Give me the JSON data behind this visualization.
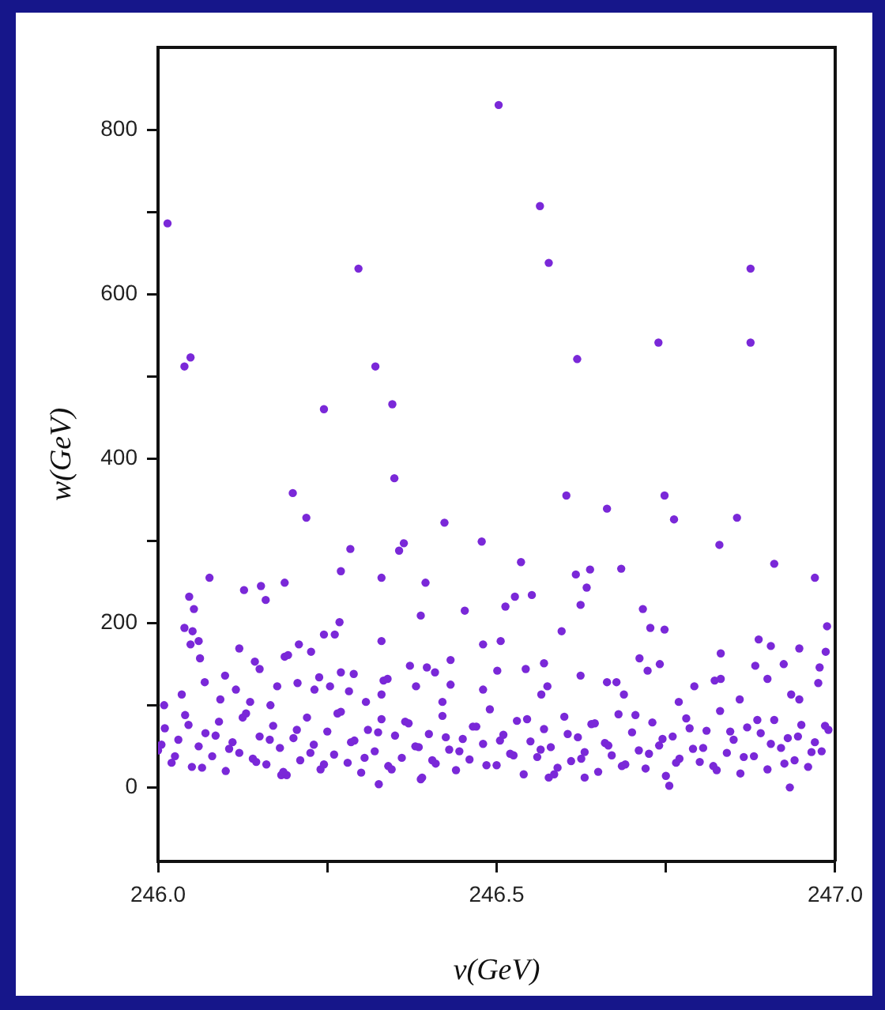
{
  "chart_data": {
    "type": "scatter",
    "xlabel": "v(GeV)",
    "ylabel": "w(GeV)",
    "xlim": [
      246,
      247
    ],
    "ylim": [
      -90,
      900
    ],
    "xticks": [
      {
        "value": 246,
        "label": "246.0"
      },
      {
        "value": 246.25,
        "label": null
      },
      246.5,
      {
        "value": 246.75,
        "label": null
      },
      {
        "value": 247,
        "label": "247.0"
      }
    ],
    "yticks": [
      0,
      {
        "value": 100,
        "label": null
      },
      200,
      {
        "value": 300,
        "label": null
      },
      400,
      {
        "value": 500,
        "label": null
      },
      600,
      {
        "value": 700,
        "label": null
      },
      800
    ],
    "marker": "circle",
    "series": [
      {
        "color": "#7a28d8",
        "x": [
          246.503,
          246.014,
          246.296,
          246.048,
          246.039,
          246.321,
          246.245,
          246.346,
          246.564,
          246.577,
          246.875,
          246.619,
          246.739,
          246.875,
          246.349,
          246.199,
          246.219,
          246.423,
          246.478,
          246.284,
          246.363,
          246.356,
          246.27,
          246.076,
          246.33,
          246.187,
          246.152,
          246.127,
          246.395,
          246.046,
          246.159,
          246.053,
          246.388,
          246.453,
          246.039,
          246.051,
          246.268,
          246.245,
          246.261,
          246.048,
          246.06,
          246.33,
          246.208,
          246.12,
          246.062,
          246.187,
          246.192,
          246.226,
          246.143,
          246.432,
          246.48,
          246.069,
          246.099,
          246.15,
          246.176,
          246.206,
          246.238,
          246.27,
          246.289,
          246.333,
          246.339,
          246.372,
          246.397,
          246.409,
          246.035,
          246.092,
          246.115,
          246.136,
          246.231,
          246.254,
          246.282,
          246.33,
          246.381,
          246.432,
          246.48,
          246.009,
          246.166,
          246.307,
          246.42,
          246.326,
          246.388,
          246.182,
          246.603,
          246.748,
          246.663,
          246.762,
          246.855,
          246.829,
          246.91,
          246.97,
          246.536,
          246.617,
          246.638,
          246.684,
          246.633,
          246.552,
          246.527,
          246.513,
          246.624,
          246.716,
          246.596,
          246.727,
          246.748,
          246.988,
          246.887,
          246.905,
          246.947,
          246.986,
          246.506,
          246.831,
          246.711,
          246.57,
          246.501,
          246.543,
          246.723,
          246.741,
          246.624,
          246.822,
          246.831,
          246.882,
          246.9,
          246.924,
          246.792,
          246.975,
          246.575,
          246.677,
          246.663,
          246.947,
          246.977,
          246.566,
          246.688,
          246.769,
          246.859,
          246.935,
          246.755,
          246.933,
          246.63,
          246.577,
          246.0,
          246.01,
          246.02,
          246.03,
          246.04,
          246.05,
          246.06,
          246.07,
          246.08,
          246.09,
          246.1,
          246.11,
          246.12,
          246.13,
          246.14,
          246.15,
          246.16,
          246.17,
          246.18,
          246.19,
          246.2,
          246.21,
          246.22,
          246.23,
          246.24,
          246.25,
          246.26,
          246.27,
          246.28,
          246.29,
          246.3,
          246.31,
          246.32,
          246.33,
          246.34,
          246.35,
          246.36,
          246.37,
          246.38,
          246.39,
          246.4,
          246.41,
          246.42,
          246.43,
          246.44,
          246.45,
          246.46,
          246.47,
          246.48,
          246.49,
          246.5,
          246.51,
          246.52,
          246.53,
          246.54,
          246.55,
          246.56,
          246.57,
          246.58,
          246.59,
          246.6,
          246.61,
          246.62,
          246.63,
          246.64,
          246.65,
          246.66,
          246.67,
          246.68,
          246.69,
          246.7,
          246.71,
          246.72,
          246.73,
          246.74,
          246.75,
          246.76,
          246.77,
          246.78,
          246.79,
          246.8,
          246.81,
          246.82,
          246.83,
          246.84,
          246.85,
          246.86,
          246.87,
          246.88,
          246.89,
          246.9,
          246.91,
          246.92,
          246.93,
          246.94,
          246.95,
          246.96,
          246.97,
          246.98,
          246.99,
          246.005,
          246.025,
          246.045,
          246.065,
          246.085,
          246.105,
          246.125,
          246.145,
          246.165,
          246.185,
          246.205,
          246.225,
          246.245,
          246.265,
          246.285,
          246.305,
          246.325,
          246.345,
          246.365,
          246.385,
          246.405,
          246.425,
          246.445,
          246.465,
          246.485,
          246.505,
          246.525,
          246.545,
          246.565,
          246.585,
          246.605,
          246.625,
          246.645,
          246.665,
          246.685,
          246.705,
          246.725,
          246.745,
          246.765,
          246.785,
          246.805,
          246.825,
          246.845,
          246.865,
          246.885,
          246.905,
          246.925,
          246.945,
          246.965,
          246.985
        ],
        "values": [
          830,
          686,
          631,
          523,
          512,
          512,
          460,
          466,
          707,
          638,
          631,
          521,
          541,
          541,
          376,
          358,
          328,
          322,
          299,
          290,
          297,
          288,
          263,
          255,
          255,
          249,
          245,
          240,
          249,
          232,
          228,
          217,
          209,
          215,
          194,
          190,
          201,
          186,
          186,
          174,
          178,
          178,
          174,
          169,
          157,
          159,
          161,
          165,
          153,
          155,
          174,
          128,
          136,
          144,
          123,
          127,
          134,
          140,
          138,
          130,
          132,
          148,
          146,
          140,
          113,
          107,
          119,
          104,
          119,
          123,
          117,
          113,
          123,
          125,
          119,
          100,
          100,
          104,
          104,
          4,
          10,
          15,
          355,
          355,
          339,
          326,
          328,
          295,
          272,
          255,
          274,
          259,
          265,
          266,
          243,
          234,
          232,
          220,
          222,
          217,
          190,
          194,
          192,
          196,
          180,
          172,
          169,
          165,
          178,
          163,
          157,
          151,
          142,
          144,
          142,
          150,
          136,
          130,
          132,
          148,
          132,
          150,
          123,
          127,
          123,
          128,
          128,
          107,
          146,
          113,
          113,
          104,
          107,
          113,
          2,
          0,
          12,
          12,
          45,
          72,
          30,
          58,
          88,
          25,
          50,
          66,
          38,
          80,
          20,
          55,
          42,
          90,
          35,
          62,
          28,
          75,
          48,
          15,
          60,
          33,
          85,
          52,
          22,
          68,
          40,
          92,
          30,
          57,
          18,
          70,
          44,
          83,
          26,
          63,
          36,
          78,
          50,
          12,
          65,
          29,
          87,
          46,
          21,
          59,
          34,
          74,
          53,
          95,
          27,
          64,
          41,
          81,
          16,
          56,
          37,
          71,
          49,
          24,
          86,
          32,
          61,
          43,
          77,
          19,
          54,
          39,
          89,
          28,
          67,
          45,
          23,
          79,
          51,
          14,
          62,
          35,
          84,
          47,
          31,
          69,
          26,
          93,
          42,
          58,
          17,
          73,
          38,
          66,
          22,
          82,
          48,
          60,
          33,
          76,
          25,
          55,
          44,
          70,
          52,
          38,
          76,
          24,
          63,
          47,
          85,
          31,
          58,
          19,
          70,
          42,
          28,
          90,
          55,
          36,
          67,
          22,
          80,
          49,
          33,
          61,
          44,
          74,
          27,
          57,
          39,
          83,
          46,
          16,
          65,
          35,
          78,
          51,
          26,
          88,
          41,
          59,
          30,
          72,
          48,
          21,
          68,
          37,
          82,
          53,
          29,
          62,
          43,
          75
        ]
      }
    ]
  }
}
